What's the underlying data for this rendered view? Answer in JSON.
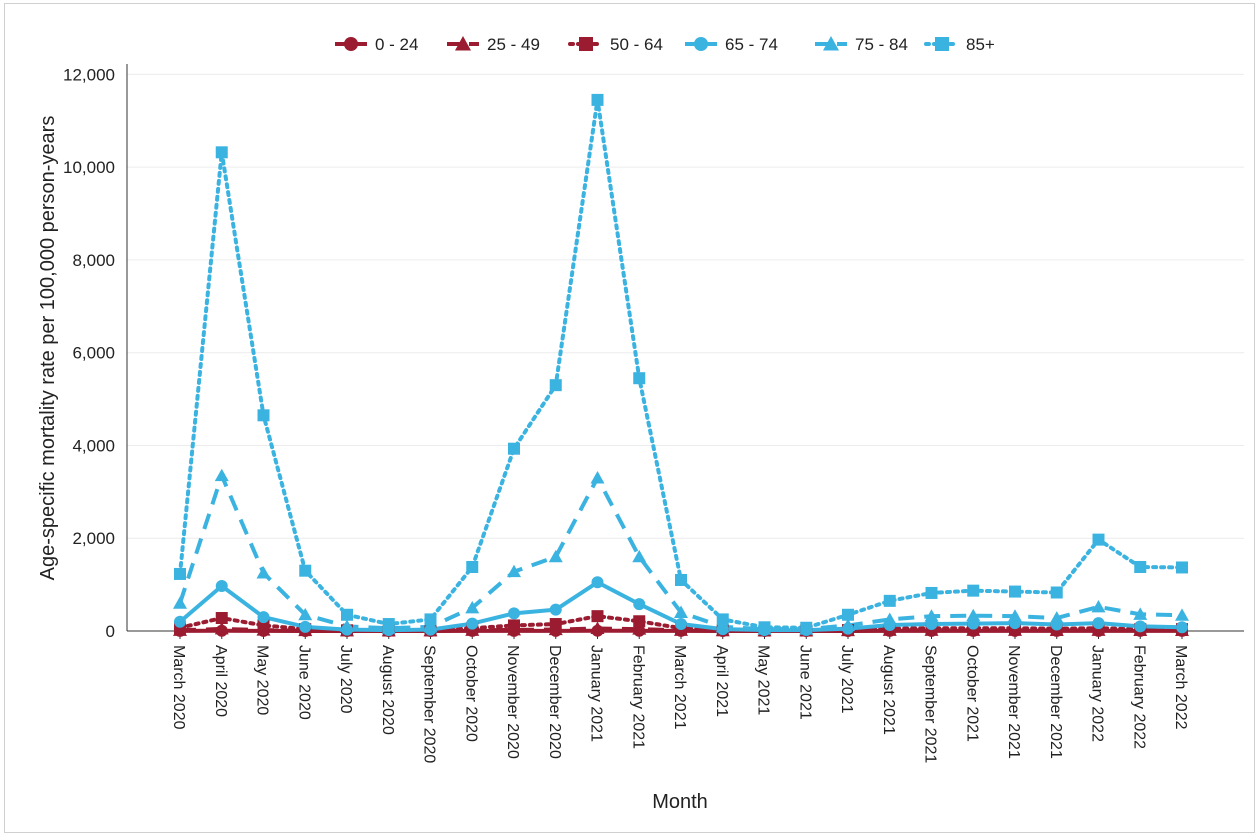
{
  "chart_data": {
    "type": "line",
    "xlabel": "Month",
    "ylabel": "Age-specific mortality rate per 100,000 person-years",
    "ylim": [
      0,
      13000
    ],
    "yticks": [
      "0",
      "2,000",
      "4,000",
      "6,000",
      "8,000",
      "10,000",
      "12,000"
    ],
    "ytick_values": [
      0,
      2000,
      4000,
      6000,
      8000,
      10000,
      12000
    ],
    "grid": "horizontal",
    "legend_position": "top",
    "categories": [
      "March 2020",
      "April 2020",
      "May 2020",
      "June 2020",
      "July 2020",
      "August 2020",
      "September 2020",
      "October 2020",
      "November 2020",
      "December 2020",
      "January 2021",
      "February 2021",
      "March 2021",
      "April 2021",
      "May 2021",
      "June 2021",
      "July 2021",
      "August 2021",
      "September 2021",
      "October 2021",
      "November 2021",
      "December 2021",
      "January 2022",
      "February 2022",
      "March 2022"
    ],
    "series": [
      {
        "name": "0 - 24",
        "color": "#9b1b30",
        "dash": "solid",
        "marker": "circle",
        "values": [
          2,
          5,
          3,
          1,
          1,
          1,
          1,
          2,
          3,
          3,
          6,
          4,
          2,
          1,
          1,
          1,
          1,
          2,
          2,
          2,
          2,
          2,
          3,
          2,
          2
        ]
      },
      {
        "name": "25 - 49",
        "color": "#9b1b30",
        "dash": "dashed",
        "marker": "triangle",
        "values": [
          15,
          45,
          20,
          8,
          4,
          3,
          4,
          15,
          25,
          30,
          55,
          40,
          15,
          6,
          3,
          3,
          8,
          15,
          15,
          15,
          15,
          12,
          15,
          10,
          10
        ]
      },
      {
        "name": "50 - 64",
        "color": "#9b1b30",
        "dash": "dotted",
        "marker": "square",
        "values": [
          70,
          280,
          120,
          40,
          15,
          10,
          15,
          60,
          120,
          150,
          320,
          210,
          60,
          20,
          10,
          10,
          20,
          50,
          60,
          60,
          60,
          50,
          60,
          40,
          40
        ]
      },
      {
        "name": "65 - 74",
        "color": "#3bb3e0",
        "dash": "solid",
        "marker": "circle",
        "values": [
          200,
          970,
          300,
          90,
          30,
          20,
          30,
          160,
          380,
          460,
          1050,
          580,
          150,
          40,
          20,
          20,
          50,
          130,
          150,
          160,
          170,
          140,
          170,
          100,
          80
        ]
      },
      {
        "name": "75 - 84",
        "color": "#3bb3e0",
        "dash": "dashed",
        "marker": "triangle",
        "values": [
          600,
          3350,
          1250,
          350,
          100,
          60,
          90,
          500,
          1280,
          1600,
          3300,
          1600,
          400,
          90,
          40,
          40,
          120,
          250,
          320,
          330,
          320,
          280,
          520,
          360,
          340
        ]
      },
      {
        "name": "85+",
        "color": "#3bb3e0",
        "dash": "dotted",
        "marker": "square",
        "values": [
          1230,
          10320,
          4650,
          1300,
          350,
          150,
          250,
          1380,
          3930,
          5300,
          11450,
          5450,
          1100,
          250,
          80,
          70,
          350,
          650,
          820,
          870,
          850,
          830,
          1970,
          1380,
          1370
        ]
      }
    ]
  }
}
